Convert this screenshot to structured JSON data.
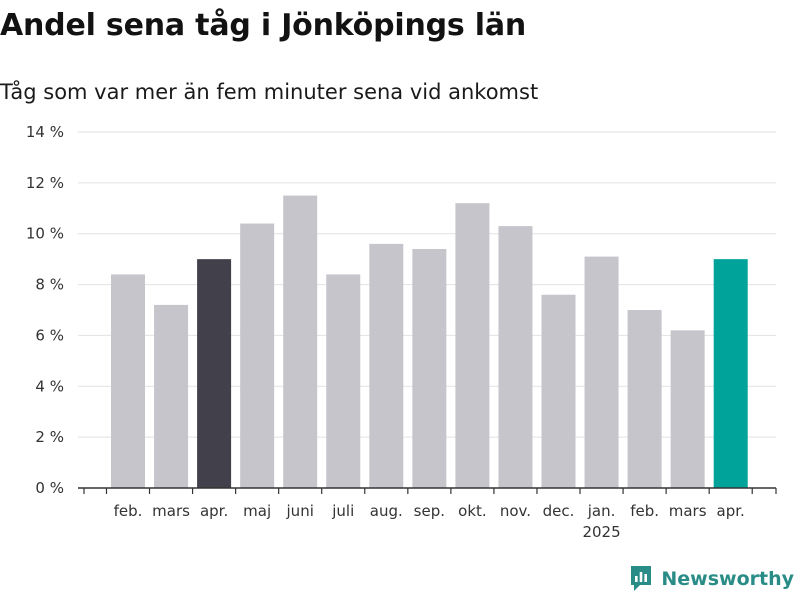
{
  "title": "Andel sena tåg i Jönköpings län",
  "subtitle": "Tåg som var mer än fem minuter sena vid ankomst",
  "brand": {
    "name": "Newsworthy",
    "icon": "newsworthy-logo-icon"
  },
  "colors": {
    "default_bar": "#c6c5cc",
    "highlight_prev": "#41404b",
    "highlight_current": "#00a39a",
    "grid": "#e2e2e2",
    "axis": "#333333"
  },
  "chart_data": {
    "type": "bar",
    "categories": [
      "feb.",
      "mars",
      "apr.",
      "maj",
      "juni",
      "juli",
      "aug.",
      "sep.",
      "okt.",
      "nov.",
      "dec.",
      "jan.",
      "feb.",
      "mars",
      "apr."
    ],
    "category_sublabels": {
      "11": "2025"
    },
    "values": [
      8.4,
      7.2,
      9.0,
      10.4,
      11.5,
      8.4,
      9.6,
      9.4,
      11.2,
      10.3,
      7.6,
      9.1,
      7.0,
      6.2,
      9.0
    ],
    "bar_colors": [
      "#c6c5cc",
      "#c6c5cc",
      "#41404b",
      "#c6c5cc",
      "#c6c5cc",
      "#c6c5cc",
      "#c6c5cc",
      "#c6c5cc",
      "#c6c5cc",
      "#c6c5cc",
      "#c6c5cc",
      "#c6c5cc",
      "#c6c5cc",
      "#c6c5cc",
      "#00a39a"
    ],
    "ylim": [
      0,
      14
    ],
    "yticks": [
      0,
      2,
      4,
      6,
      8,
      10,
      12,
      14
    ],
    "ytick_labels": [
      "0 %",
      "2 %",
      "4 %",
      "6 %",
      "8 %",
      "10 %",
      "12 %",
      "14 %"
    ],
    "grid": true,
    "xlabel": "",
    "ylabel": ""
  }
}
